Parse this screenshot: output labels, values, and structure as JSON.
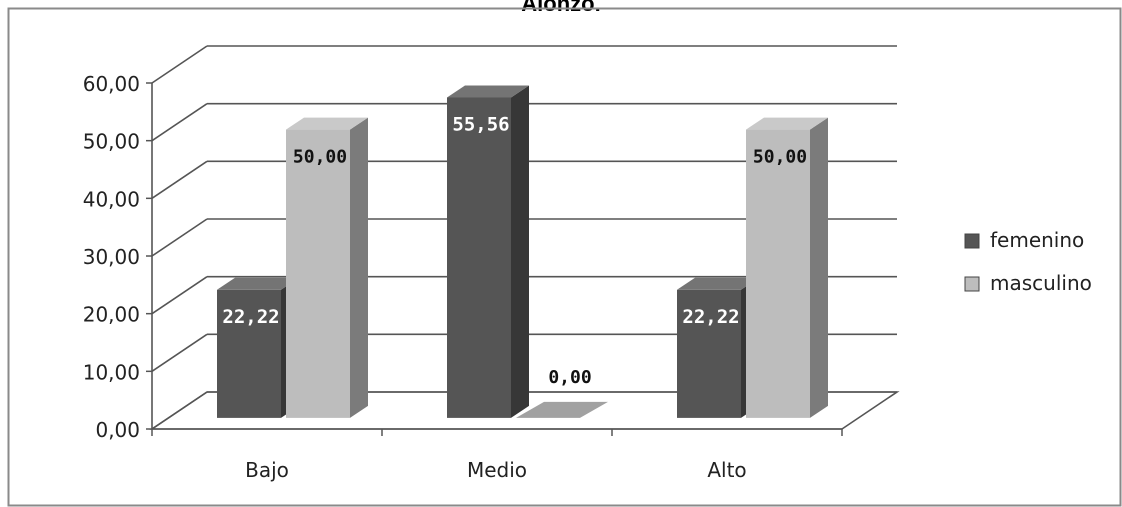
{
  "title": "Alonzo.",
  "chart_data": {
    "type": "bar",
    "title": "Alonzo.",
    "categories": [
      "Bajo",
      "Medio",
      "Alto"
    ],
    "series": [
      {
        "name": "femenino",
        "values": [
          22.22,
          55.56,
          22.22
        ],
        "labels": [
          "22,22",
          "55,56",
          "22,22"
        ],
        "color": "#555555"
      },
      {
        "name": "masculino",
        "values": [
          50.0,
          0.0,
          50.0
        ],
        "labels": [
          "50,00",
          "0,00",
          "50,00"
        ],
        "color": "#bdbdbd"
      }
    ],
    "y_ticks": [
      "0,00",
      "10,00",
      "20,00",
      "30,00",
      "40,00",
      "50,00",
      "60,00"
    ],
    "ylim": [
      0,
      60
    ],
    "xlabel": "",
    "ylabel": "",
    "grid": true,
    "three_d": true,
    "legend_position": "right"
  }
}
